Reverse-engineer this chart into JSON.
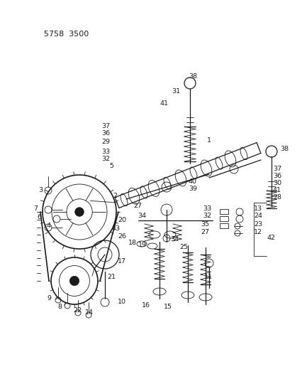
{
  "title_code": "5758 3500",
  "background_color": "#ffffff",
  "line_color": "#1a1a1a",
  "figsize": [
    4.27,
    5.33
  ],
  "dpi": 100
}
